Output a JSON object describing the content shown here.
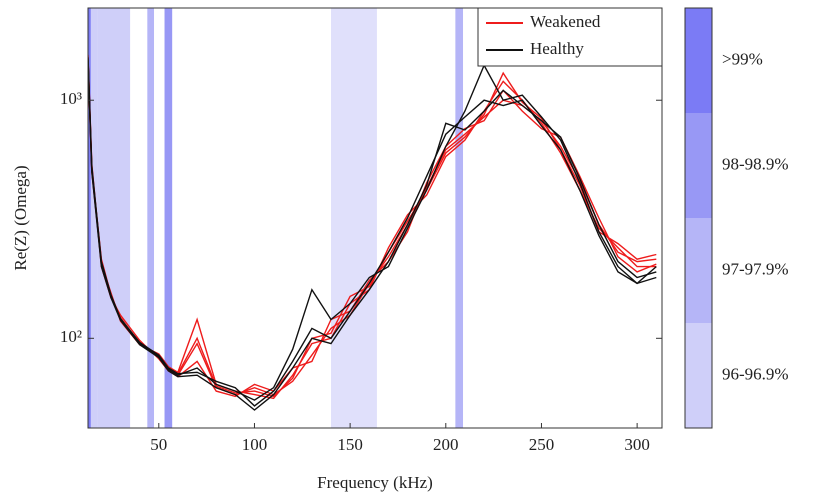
{
  "chart_data": {
    "type": "line",
    "yscale": "log",
    "xlabel": "Frequency (kHz)",
    "ylabel": "Re(Z) (Omega)",
    "xlim": [
      13,
      313
    ],
    "ylim": [
      42,
      2440
    ],
    "xticks": [
      50,
      100,
      150,
      200,
      250,
      300
    ],
    "yticks": [
      {
        "value": 100,
        "label": "10²"
      },
      {
        "value": 1000,
        "label": "10³"
      }
    ],
    "legend": "top-right",
    "x": [
      13,
      15,
      20,
      25,
      30,
      40,
      50,
      55,
      60,
      70,
      80,
      90,
      100,
      110,
      120,
      130,
      140,
      150,
      160,
      170,
      180,
      190,
      200,
      210,
      220,
      230,
      240,
      250,
      260,
      270,
      280,
      290,
      300,
      310
    ],
    "series": [
      {
        "name": "Weakened",
        "color": "#ee1c1c",
        "values": [
          [
            1500,
            520,
            210,
            150,
            120,
            96,
            84,
            74,
            70,
            95,
            62,
            58,
            62,
            58,
            66,
            85,
            110,
            125,
            170,
            220,
            300,
            430,
            620,
            720,
            850,
            1000,
            950,
            820,
            640,
            460,
            300,
            230,
            210,
            215
          ],
          [
            1450,
            500,
            205,
            155,
            118,
            94,
            86,
            76,
            72,
            120,
            64,
            60,
            58,
            56,
            70,
            95,
            100,
            140,
            160,
            240,
            330,
            400,
            580,
            680,
            900,
            1200,
            1000,
            800,
            600,
            420,
            290,
            240,
            200,
            200
          ],
          [
            1550,
            540,
            200,
            148,
            125,
            98,
            82,
            73,
            69,
            80,
            60,
            57,
            64,
            60,
            75,
            80,
            120,
            130,
            175,
            210,
            280,
            450,
            640,
            760,
            820,
            1100,
            900,
            760,
            700,
            480,
            320,
            220,
            190,
            205
          ],
          [
            1480,
            510,
            215,
            152,
            122,
            95,
            85,
            75,
            71,
            100,
            63,
            59,
            60,
            57,
            68,
            100,
            105,
            150,
            165,
            230,
            310,
            420,
            600,
            700,
            870,
            1300,
            980,
            840,
            620,
            440,
            280,
            250,
            215,
            225
          ]
        ]
      },
      {
        "name": "Healthy",
        "color": "#111111",
        "values": [
          [
            1500,
            510,
            205,
            150,
            120,
            95,
            84,
            74,
            70,
            75,
            64,
            60,
            55,
            62,
            90,
            160,
            120,
            140,
            180,
            200,
            290,
            420,
            640,
            900,
            1400,
            1000,
            1050,
            850,
            680,
            450,
            280,
            200,
            170,
            180
          ],
          [
            1520,
            530,
            210,
            152,
            121,
            96,
            85,
            75,
            71,
            72,
            66,
            62,
            52,
            60,
            80,
            110,
            100,
            130,
            170,
            230,
            320,
            480,
            720,
            850,
            1000,
            950,
            1000,
            780,
            620,
            420,
            270,
            190,
            170,
            200
          ],
          [
            1470,
            500,
            200,
            148,
            119,
            94,
            83,
            73,
            69,
            70,
            62,
            58,
            50,
            58,
            75,
            100,
            95,
            125,
            160,
            210,
            300,
            440,
            800,
            750,
            900,
            1100,
            950,
            820,
            700,
            470,
            300,
            210,
            180,
            190
          ]
        ]
      }
    ],
    "bands": [
      {
        "range": [
          13,
          14.5
        ],
        "color": "#7b7bf5"
      },
      {
        "range": [
          14.5,
          18
        ],
        "color": "#cfcff9"
      },
      {
        "range": [
          18,
          35
        ],
        "color": "#cfcff9"
      },
      {
        "range": [
          44,
          47.5
        ],
        "color": "#b5b5f7"
      },
      {
        "range": [
          53,
          57
        ],
        "color": "#9898f5"
      },
      {
        "range": [
          140,
          164
        ],
        "color": "#e0e0fb"
      },
      {
        "range": [
          205,
          209
        ],
        "color": "#b5b5f7"
      }
    ],
    "colorbar": {
      "labels": [
        ">99%",
        "98-98.9%",
        "97-97.9%",
        "96-96.9%"
      ],
      "colors": [
        "#7b7bf5",
        "#9898f5",
        "#b5b5f7",
        "#cfcff9"
      ]
    }
  }
}
